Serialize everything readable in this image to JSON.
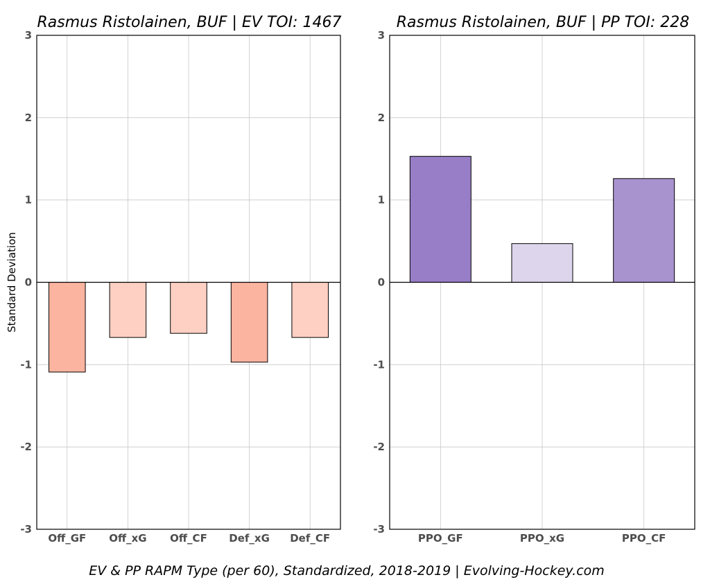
{
  "caption": "EV & PP RAPM Type (per 60), Standardized, 2018-2019    |    Evolving-Hockey.com",
  "chart_data": [
    {
      "type": "bar",
      "title": "Rasmus Ristolainen, BUF  |  EV TOI: 1467",
      "ylabel": "Standard Deviation",
      "xlabel": "",
      "ylim": [
        -3,
        3
      ],
      "yticks": [
        -3,
        -2,
        -1,
        0,
        1,
        2,
        3
      ],
      "grid": true,
      "categories": [
        "Off_GF",
        "Off_xG",
        "Off_CF",
        "Def_xG",
        "Def_CF"
      ],
      "values": [
        -1.09,
        -0.67,
        -0.62,
        -0.97,
        -0.67
      ],
      "colors": [
        "#fbb4a0",
        "#fdd0c3",
        "#fdd0c3",
        "#fbb4a0",
        "#fdd0c3"
      ]
    },
    {
      "type": "bar",
      "title": "Rasmus Ristolainen, BUF  |  PP TOI: 228",
      "ylabel": "",
      "xlabel": "",
      "ylim": [
        -3,
        3
      ],
      "yticks": [
        -3,
        -2,
        -1,
        0,
        1,
        2,
        3
      ],
      "grid": true,
      "categories": [
        "PPO_GF",
        "PPO_xG",
        "PPO_CF"
      ],
      "values": [
        1.53,
        0.47,
        1.26
      ],
      "colors": [
        "#977ec6",
        "#ddd5ec",
        "#a893cf"
      ]
    }
  ]
}
